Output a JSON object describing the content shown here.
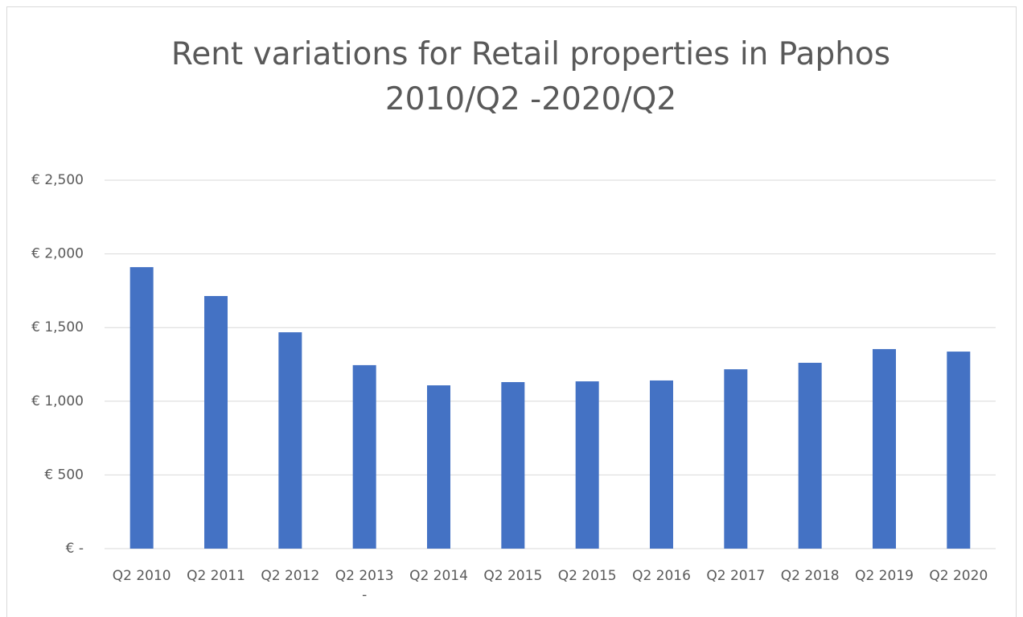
{
  "chart_data": {
    "type": "bar",
    "title": "Rent variations for Retail properties in Paphos 2010/Q2 -2020/Q2",
    "categories": [
      "Q2 2010",
      "Q2 2011",
      "Q2 2012",
      "Q2 2013 -",
      "Q2 2014",
      "Q2 2015",
      "Q2 2015",
      "Q2 2016",
      "Q2 2017",
      "Q2 2018",
      "Q2 2019",
      "Q2 2020"
    ],
    "values": [
      1910,
      1714,
      1468,
      1245,
      1108,
      1130,
      1135,
      1141,
      1217,
      1261,
      1354,
      1337
    ],
    "color": "#4472c4",
    "ylim": [
      0,
      2500
    ],
    "yticks": [
      {
        "value": 0,
        "label": "€ -"
      },
      {
        "value": 500,
        "label": "€ 500"
      },
      {
        "value": 1000,
        "label": "€ 1,000"
      },
      {
        "value": 1500,
        "label": "€ 1,500"
      },
      {
        "value": 2000,
        "label": "€ 2,000"
      },
      {
        "value": 2500,
        "label": "€ 2,500"
      }
    ],
    "grid": true
  }
}
